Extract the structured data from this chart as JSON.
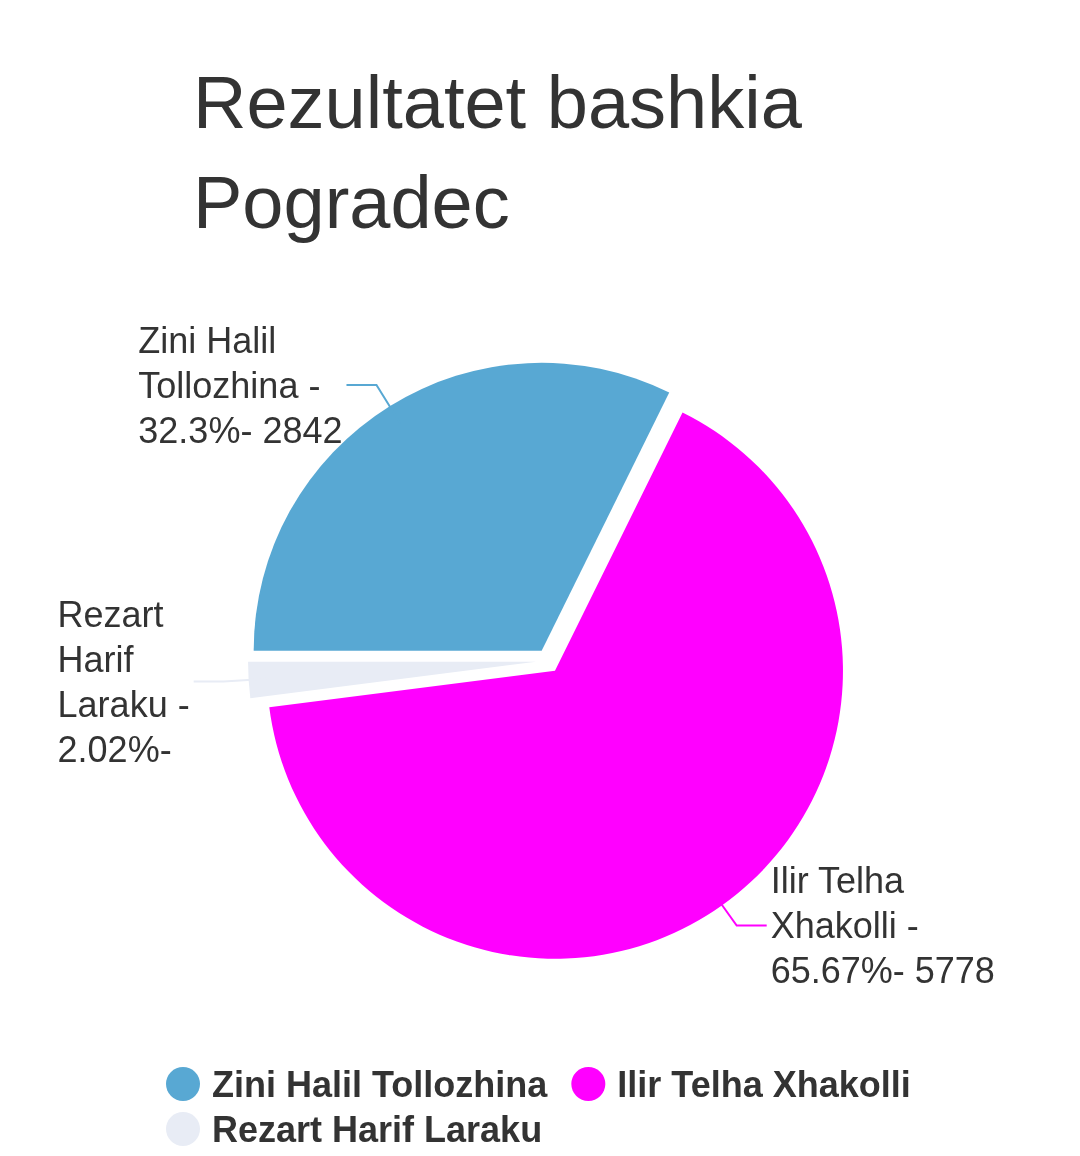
{
  "chart_data": {
    "type": "pie",
    "title": "Rezultatet bashkia Pogradec",
    "categories": [
      "Zini Halil Tollozhina",
      "Ilir Telha Xhakolli",
      "Rezart Harif Laraku"
    ],
    "values": [
      32.3,
      65.67,
      2.02
    ],
    "colors": [
      "#58a8d3",
      "#ff00ff",
      "#e8ecf5"
    ],
    "annotations": [
      {
        "text": "Zini Halil Tollozhina - 32.3%- 2842",
        "x": "Zini Halil Tollozhina"
      },
      {
        "text": "Ilir Telha Xhakolli - 65.67%- 5778",
        "x": "Ilir Telha Xhakolli"
      },
      {
        "text": "Rezart Harif Laraku - 2.02%-",
        "x": "Rezart Harif Laraku"
      }
    ],
    "legend": "bottom"
  }
}
